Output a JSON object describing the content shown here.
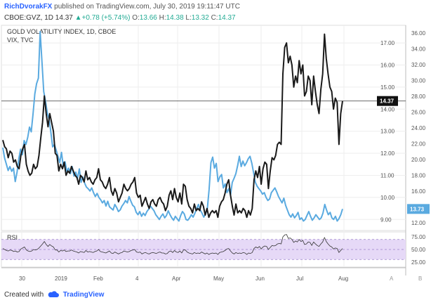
{
  "header": {
    "author": "RichDvorakFX",
    "published": "published on TradingView.com, July 30, 2019 19:11:47 UTC",
    "symbol": "CBOE:GVZ, 1D",
    "last": "14.37",
    "change": "+0.78 (+5.74%)",
    "o_label": "O:",
    "o": "13.66",
    "h_label": "H:",
    "h": "14.38",
    "l_label": "L:",
    "l": "13.32",
    "c_label": "C:",
    "c": "14.37"
  },
  "footer": {
    "created_with": "Created with",
    "brand": "TradingView"
  },
  "colors": {
    "gvz": "#1a1a1a",
    "vix": "#5aaae0",
    "rsi": "#333333",
    "rsi_band": "#e6d9f7",
    "grid": "#eeeeee",
    "accent": "#2962ff",
    "up": "#22ab94"
  },
  "chart_data": [
    {
      "type": "line",
      "title": "GOLD VOLATILITY INDEX, 1D, CBOE",
      "subtitle": "VIX, TVC",
      "x_ticks": [
        "30",
        "2019",
        "Feb",
        "4",
        "Apr",
        "May",
        "Jun",
        "Jul",
        "Aug"
      ],
      "left_axis": {
        "ticks": [
          "17.00",
          "16.00",
          "15.00",
          "14.00",
          "13.00",
          "12.00",
          "11.00",
          "10.00",
          "9.00"
        ],
        "ylim": [
          8.5,
          17.8
        ]
      },
      "right_axis": {
        "ticks": [
          "36.00",
          "34.00",
          "32.00",
          "30.00",
          "28.00",
          "26.00",
          "24.00",
          "22.00",
          "20.00",
          "18.00",
          "16.00",
          "14.00",
          "12.00"
        ],
        "ylim": [
          11,
          37
        ]
      },
      "series": [
        {
          "name": "GOLD VOLATILITY INDEX",
          "axis": "left",
          "last_label": "14.37",
          "values": [
            12.6,
            12.3,
            12.2,
            11.8,
            12.1,
            12.0,
            11.6,
            11.7,
            11.4,
            11.3,
            11.9,
            12.2,
            12.4,
            11.5,
            11.2,
            11.0,
            11.1,
            11.5,
            11.3,
            11.4,
            11.9,
            12.7,
            13.4,
            14.6,
            13.8,
            13.2,
            13.8,
            13.4,
            13.0,
            12.0,
            11.9,
            11.2,
            11.5,
            11.3,
            11.6,
            11.0,
            11.2,
            11.1,
            11.4,
            11.2,
            11.0,
            10.9,
            10.6,
            11.0,
            10.9,
            10.7,
            11.2,
            10.8,
            10.9,
            10.7,
            10.6,
            10.8,
            10.9,
            11.3,
            10.8,
            10.7,
            10.5,
            10.4,
            10.6,
            10.9,
            10.3,
            10.1,
            10.4,
            10.2,
            9.8,
            10.0,
            10.2,
            10.6,
            10.4,
            10.3,
            10.4,
            10.6,
            10.7,
            10.9,
            10.2,
            10.0,
            10.1,
            9.6,
            9.8,
            10.0,
            9.7,
            9.5,
            9.8,
            9.9,
            9.7,
            9.6,
            9.9,
            10.0,
            9.8,
            9.7,
            9.4,
            9.6,
            10.1,
            10.3,
            9.9,
            10.4,
            10.0,
            9.8,
            10.2,
            9.7,
            10.6,
            10.5,
            9.9,
            9.6,
            9.5,
            9.3,
            9.7,
            9.4,
            9.5,
            9.4,
            9.8,
            9.6,
            9.2,
            9.5,
            9.1,
            9.3,
            9.4,
            9.3,
            9.4,
            9.1,
            9.6,
            9.8,
            9.9,
            10.2,
            10.6,
            10.8,
            10.1,
            9.6,
            9.2,
            9.7,
            9.3,
            9.4,
            9.3,
            9.5,
            9.4,
            9.1,
            9.4,
            9.2,
            9.5,
            10.8,
            11.2,
            10.9,
            11.4,
            10.6,
            11.3,
            11.6,
            11.5,
            10.4,
            11.2,
            11.8,
            11.7,
            11.9,
            12.4,
            12.5,
            12.4,
            15.6,
            16.8,
            17.0,
            16.1,
            16.4,
            16.0,
            15.0,
            15.5,
            15.2,
            16.2,
            15.6,
            16.0,
            14.6,
            14.8,
            15.5,
            15.3,
            14.2,
            15.5,
            14.8,
            14.2,
            13.8,
            14.9,
            15.6,
            17.4,
            16.3,
            15.6,
            15.0,
            14.8,
            14.0,
            14.5,
            14.3,
            12.4,
            13.8,
            14.37
          ]
        },
        {
          "name": "VIX",
          "axis": "right",
          "last_label": "13.73",
          "values": [
            21.5,
            20.2,
            19.4,
            18.6,
            19.1,
            18.5,
            18.9,
            17.2,
            18.4,
            20.1,
            21.3,
            20.6,
            22.4,
            21.9,
            22.8,
            24.1,
            23.5,
            25.8,
            28.3,
            29.6,
            30.3,
            36.2,
            32.5,
            28.6,
            27.4,
            25.9,
            25.1,
            23.5,
            21.6,
            21.9,
            21.2,
            20.4,
            19.6,
            20.9,
            19.1,
            19.7,
            18.5,
            18.9,
            18.2,
            19.1,
            17.9,
            18.4,
            17.6,
            18.8,
            17.1,
            17.8,
            17.0,
            16.5,
            16.3,
            16.0,
            16.4,
            15.8,
            15.3,
            15.7,
            15.2,
            14.9,
            14.5,
            14.8,
            14.1,
            14.7,
            14.0,
            13.8,
            13.6,
            14.3,
            13.9,
            13.4,
            13.6,
            14.1,
            14.4,
            14.8,
            14.5,
            15.3,
            14.7,
            14.2,
            14.0,
            13.3,
            13.0,
            13.4,
            12.8,
            13.2,
            12.9,
            13.4,
            13.7,
            14.1,
            13.8,
            13.5,
            13.0,
            12.7,
            12.4,
            12.8,
            13.1,
            12.6,
            12.9,
            13.5,
            13.0,
            12.6,
            12.3,
            12.8,
            12.5,
            12.2,
            12.9,
            13.4,
            13.1,
            12.4,
            12.3,
            12.6,
            13.0,
            12.7,
            13.2,
            13.8,
            14.3,
            13.6,
            13.2,
            12.7,
            13.1,
            13.8,
            16.2,
            19.6,
            20.3,
            18.9,
            19.5,
            17.2,
            17.8,
            18.1,
            16.4,
            16.9,
            15.8,
            16.3,
            15.5,
            17.1,
            17.6,
            18.2,
            19.2,
            20.4,
            19.1,
            19.8,
            19.2,
            19.6,
            20.1,
            20.4,
            19.5,
            18.3,
            17.1,
            16.6,
            16.3,
            16.0,
            15.6,
            15.8,
            15.2,
            14.8,
            15.0,
            15.8,
            16.1,
            16.4,
            15.9,
            15.3,
            14.9,
            14.5,
            15.1,
            14.2,
            13.6,
            13.0,
            12.7,
            13.1,
            12.6,
            12.9,
            13.3,
            12.4,
            12.6,
            12.2,
            12.4,
            12.9,
            13.4,
            12.8,
            12.3,
            12.6,
            13.0,
            12.7,
            12.4,
            12.6,
            13.2,
            14.3,
            13.6,
            13.0,
            13.3,
            12.6,
            12.4,
            12.8,
            12.2,
            12.5,
            13.0,
            13.73
          ]
        }
      ]
    },
    {
      "type": "line",
      "title": "RSI",
      "ticks": [
        "75.00",
        "50.00",
        "25.00"
      ],
      "ylim": [
        15,
        85
      ],
      "band": [
        30,
        70
      ],
      "series": [
        {
          "name": "RSI",
          "values": [
            52,
            50,
            48,
            47,
            49,
            48,
            46,
            47,
            45,
            46,
            51,
            53,
            55,
            49,
            47,
            46,
            47,
            50,
            49,
            50,
            53,
            57,
            61,
            66,
            60,
            56,
            60,
            57,
            55,
            49,
            49,
            45,
            48,
            47,
            49,
            46,
            47,
            47,
            49,
            47,
            46,
            45,
            43,
            46,
            45,
            44,
            48,
            45,
            46,
            45,
            44,
            46,
            47,
            50,
            46,
            45,
            44,
            43,
            45,
            47,
            43,
            42,
            45,
            43,
            41,
            43,
            44,
            47,
            46,
            45,
            46,
            48,
            49,
            50,
            45,
            44,
            45,
            41,
            43,
            44,
            42,
            41,
            43,
            44,
            43,
            42,
            44,
            45,
            43,
            43,
            41,
            42,
            46,
            47,
            44,
            48,
            45,
            44,
            47,
            43,
            49,
            49,
            45,
            43,
            42,
            41,
            44,
            42,
            43,
            42,
            45,
            43,
            41,
            43,
            40,
            42,
            43,
            42,
            43,
            40,
            44,
            45,
            46,
            48,
            51,
            52,
            47,
            43,
            41,
            44,
            42,
            43,
            42,
            44,
            43,
            40,
            43,
            42,
            44,
            52,
            55,
            53,
            56,
            51,
            55,
            57,
            56,
            50,
            54,
            58,
            57,
            58,
            61,
            62,
            61,
            75,
            79,
            80,
            72,
            73,
            70,
            64,
            67,
            65,
            70,
            66,
            68,
            60,
            61,
            65,
            64,
            58,
            65,
            61,
            58,
            56,
            61,
            65,
            74,
            66,
            61,
            57,
            55,
            51,
            53,
            52,
            44,
            48,
            52
          ]
        }
      ]
    }
  ]
}
